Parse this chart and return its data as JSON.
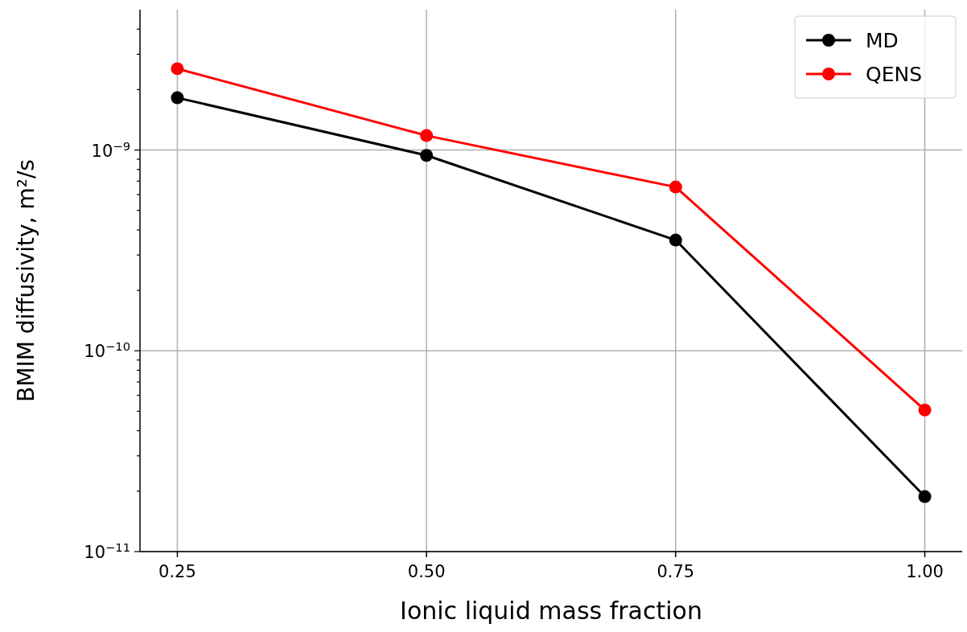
{
  "chart_data": {
    "type": "line",
    "xlabel": "Ionic liquid mass fraction",
    "ylabel": "BMIM diffusivity, m²/s",
    "x": [
      0.25,
      0.5,
      0.75,
      1.0
    ],
    "series": [
      {
        "name": "MD",
        "color": "#000000",
        "values": [
          1.82e-09,
          9.4e-10,
          3.56e-10,
          1.88e-11
        ]
      },
      {
        "name": "QENS",
        "color": "#ff0000",
        "values": [
          2.54e-09,
          1.18e-09,
          6.54e-10,
          5.07e-11
        ]
      }
    ],
    "log": "y",
    "xlim": [
      0.2125,
      1.0375
    ],
    "ylim": [
      1e-11,
      5e-09
    ],
    "xticks": [
      {
        "value": 0.25,
        "label": "0.25"
      },
      {
        "value": 0.5,
        "label": "0.50"
      },
      {
        "value": 0.75,
        "label": "0.75"
      },
      {
        "value": 1.0,
        "label": "1.00"
      }
    ],
    "yticks": [
      {
        "value": 1e-11,
        "label": "10$^{−11}$"
      },
      {
        "value": 2e-11,
        "label": null
      },
      {
        "value": 3e-11,
        "label": null
      },
      {
        "value": 4e-11,
        "label": null
      },
      {
        "value": 5e-11,
        "label": null
      },
      {
        "value": 6e-11,
        "label": null
      },
      {
        "value": 7e-11,
        "label": null
      },
      {
        "value": 8e-11,
        "label": null
      },
      {
        "value": 9e-11,
        "label": null
      },
      {
        "value": 1e-10,
        "label": "10$^{−10}$"
      },
      {
        "value": 2e-10,
        "label": null
      },
      {
        "value": 3e-10,
        "label": null
      },
      {
        "value": 4e-10,
        "label": null
      },
      {
        "value": 5e-10,
        "label": null
      },
      {
        "value": 6e-10,
        "label": null
      },
      {
        "value": 7e-10,
        "label": null
      },
      {
        "value": 8e-10,
        "label": null
      },
      {
        "value": 9e-10,
        "label": null
      },
      {
        "value": 1e-09,
        "label": "10$^{−9}$"
      },
      {
        "value": 2e-09,
        "label": null
      },
      {
        "value": 3e-09,
        "label": null
      },
      {
        "value": 4e-09,
        "label": null
      }
    ],
    "grid": true,
    "legend": "top right",
    "marker": "circle",
    "line_style": "solid"
  }
}
